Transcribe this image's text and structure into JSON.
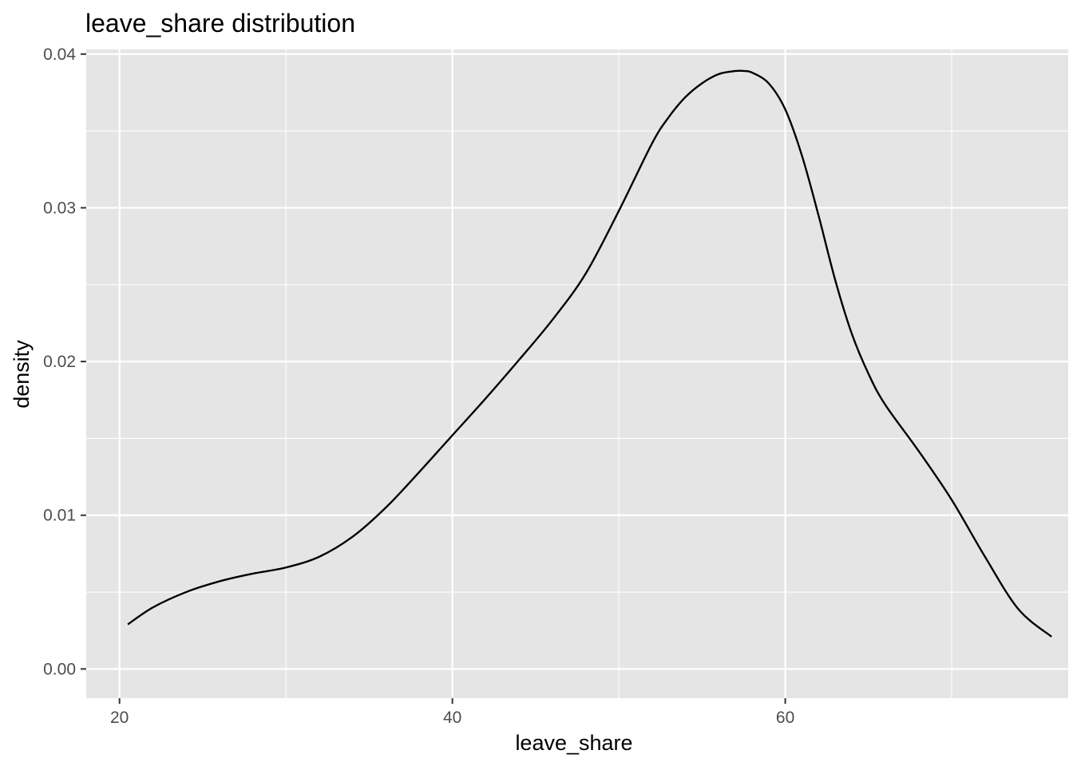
{
  "chart_data": {
    "type": "line",
    "title": "leave_share distribution",
    "xlabel": "leave_share",
    "ylabel": "density",
    "xlim": [
      18,
      77
    ],
    "ylim": [
      -0.0019,
      0.0403
    ],
    "x_ticks": [
      20,
      40,
      60
    ],
    "x_tick_labels": [
      "20",
      "40",
      "60"
    ],
    "x_minor_ticks": [
      30,
      50,
      70
    ],
    "y_ticks": [
      0.0,
      0.01,
      0.02,
      0.03,
      0.04
    ],
    "y_tick_labels": [
      "0.00",
      "0.01",
      "0.02",
      "0.03",
      "0.04"
    ],
    "y_minor_ticks": [
      0.005,
      0.015,
      0.025,
      0.035
    ],
    "grid": true,
    "colors": {
      "panel": "#e5e5e5",
      "grid": "#ffffff",
      "line": "#000000",
      "tick_text": "#4d4d4d"
    },
    "series": [
      {
        "x": [
          20.5,
          22,
          24,
          26,
          28,
          30,
          32,
          34,
          36,
          38,
          40,
          42,
          44,
          46,
          48,
          50,
          52,
          53,
          54,
          55,
          56,
          57,
          57.5,
          58,
          59,
          60,
          61,
          62,
          63,
          64,
          65,
          66,
          68,
          70,
          72,
          74,
          76
        ],
        "y": [
          0.0029,
          0.004,
          0.005,
          0.0057,
          0.0062,
          0.0066,
          0.0073,
          0.0086,
          0.0105,
          0.0128,
          0.0152,
          0.0176,
          0.0201,
          0.0227,
          0.0257,
          0.0298,
          0.0342,
          0.0359,
          0.0372,
          0.0381,
          0.0387,
          0.0389,
          0.0389,
          0.0388,
          0.0381,
          0.0364,
          0.0334,
          0.0295,
          0.0253,
          0.0218,
          0.0192,
          0.0172,
          0.0142,
          0.011,
          0.0073,
          0.0039,
          0.0021
        ]
      }
    ]
  }
}
